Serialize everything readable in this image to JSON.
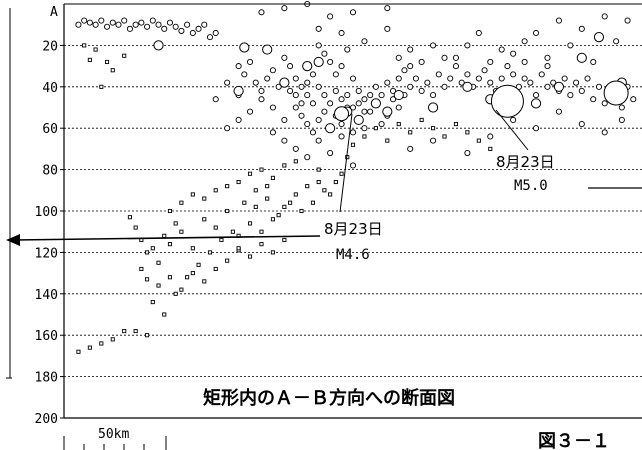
{
  "chart_data": {
    "type": "scatter",
    "title": "矩形内のＡ－Ｂ方向への断面図",
    "figure_label": "図３－１",
    "corner_label": "A",
    "scale_label": "50km",
    "ylim": [
      0,
      200
    ],
    "yticks": [
      20,
      40,
      60,
      80,
      100,
      120,
      140,
      160,
      180,
      200
    ],
    "y_reversed": true,
    "grid": "horizontal-dotted",
    "x_extent": [
      0,
      100
    ],
    "annotations": [
      {
        "date": "8月23日",
        "mag": "M4.6",
        "x": 48,
        "y": 55
      },
      {
        "date": "8月23日",
        "mag": "M5.0",
        "x": 78,
        "y": 47
      }
    ],
    "series": [
      {
        "marker": "square",
        "points": [
          [
            3,
            20
          ],
          [
            5,
            22
          ],
          [
            4,
            27
          ],
          [
            7,
            28
          ],
          [
            10,
            25
          ],
          [
            8,
            32
          ],
          [
            6,
            40
          ],
          [
            11,
            103
          ],
          [
            12,
            108
          ],
          [
            13,
            114
          ],
          [
            14,
            120
          ],
          [
            15,
            118
          ],
          [
            16,
            125
          ],
          [
            17,
            112
          ],
          [
            18,
            116
          ],
          [
            19,
            106
          ],
          [
            20,
            110
          ],
          [
            13,
            128
          ],
          [
            14,
            133
          ],
          [
            16,
            136
          ],
          [
            18,
            132
          ],
          [
            20,
            138
          ],
          [
            22,
            130
          ],
          [
            24,
            134
          ],
          [
            26,
            128
          ],
          [
            28,
            124
          ],
          [
            30,
            119
          ],
          [
            15,
            144
          ],
          [
            17,
            150
          ],
          [
            14,
            160
          ],
          [
            12,
            158
          ],
          [
            10,
            158
          ],
          [
            8,
            162
          ],
          [
            6,
            164
          ],
          [
            4,
            166
          ],
          [
            2,
            168
          ],
          [
            18,
            100
          ],
          [
            20,
            96
          ],
          [
            22,
            92
          ],
          [
            24,
            94
          ],
          [
            26,
            90
          ],
          [
            28,
            88
          ],
          [
            30,
            86
          ],
          [
            32,
            82
          ],
          [
            34,
            80
          ],
          [
            36,
            84
          ],
          [
            38,
            78
          ],
          [
            40,
            76
          ],
          [
            42,
            74
          ],
          [
            44,
            80
          ],
          [
            24,
            104
          ],
          [
            26,
            108
          ],
          [
            28,
            100
          ],
          [
            30,
            112
          ],
          [
            32,
            106
          ],
          [
            34,
            110
          ],
          [
            36,
            104
          ],
          [
            38,
            98
          ],
          [
            40,
            92
          ],
          [
            42,
            88
          ],
          [
            44,
            86
          ],
          [
            46,
            92
          ],
          [
            48,
            82
          ],
          [
            30,
            118
          ],
          [
            32,
            122
          ],
          [
            34,
            116
          ],
          [
            36,
            120
          ],
          [
            38,
            114
          ],
          [
            22,
            118
          ],
          [
            25,
            120
          ],
          [
            27,
            114
          ],
          [
            29,
            110
          ],
          [
            31,
            96
          ],
          [
            33,
            98
          ],
          [
            35,
            94
          ],
          [
            37,
            102
          ],
          [
            39,
            96
          ],
          [
            41,
            100
          ],
          [
            43,
            96
          ],
          [
            45,
            90
          ],
          [
            47,
            86
          ],
          [
            49,
            74
          ],
          [
            50,
            68
          ],
          [
            52,
            64
          ],
          [
            54,
            60
          ],
          [
            56,
            66
          ],
          [
            58,
            58
          ],
          [
            60,
            62
          ],
          [
            62,
            56
          ],
          [
            64,
            60
          ],
          [
            66,
            64
          ],
          [
            68,
            58
          ],
          [
            70,
            62
          ],
          [
            72,
            66
          ],
          [
            74,
            70
          ],
          [
            23,
            126
          ],
          [
            21,
            132
          ],
          [
            19,
            140
          ],
          [
            33,
            90
          ],
          [
            35,
            88
          ]
        ]
      },
      {
        "marker": "circle-small",
        "points": [
          [
            2,
            10
          ],
          [
            3,
            8
          ],
          [
            4,
            9
          ],
          [
            5,
            10
          ],
          [
            6,
            8
          ],
          [
            7,
            11
          ],
          [
            8,
            9
          ],
          [
            9,
            10
          ],
          [
            10,
            8
          ],
          [
            11,
            12
          ],
          [
            12,
            10
          ],
          [
            13,
            9
          ],
          [
            14,
            11
          ],
          [
            15,
            8
          ],
          [
            16,
            10
          ],
          [
            17,
            12
          ],
          [
            18,
            9
          ],
          [
            19,
            11
          ],
          [
            20,
            13
          ],
          [
            21,
            10
          ],
          [
            22,
            14
          ],
          [
            23,
            12
          ],
          [
            24,
            10
          ],
          [
            25,
            16
          ],
          [
            26,
            14
          ],
          [
            30,
            30
          ],
          [
            31,
            34
          ],
          [
            32,
            28
          ],
          [
            33,
            38
          ],
          [
            34,
            42
          ],
          [
            35,
            36
          ],
          [
            36,
            32
          ],
          [
            37,
            40
          ],
          [
            38,
            26
          ],
          [
            39,
            30
          ],
          [
            40,
            44
          ],
          [
            41,
            48
          ],
          [
            42,
            38
          ],
          [
            43,
            34
          ],
          [
            44,
            20
          ],
          [
            45,
            24
          ],
          [
            46,
            28
          ],
          [
            47,
            34
          ],
          [
            48,
            30
          ],
          [
            49,
            22
          ],
          [
            50,
            36
          ],
          [
            51,
            42
          ],
          [
            52,
            46
          ],
          [
            40,
            50
          ],
          [
            41,
            54
          ],
          [
            42,
            58
          ],
          [
            43,
            62
          ],
          [
            44,
            56
          ],
          [
            45,
            52
          ],
          [
            46,
            60
          ],
          [
            47,
            54
          ],
          [
            48,
            58
          ],
          [
            49,
            50
          ],
          [
            50,
            62
          ],
          [
            51,
            56
          ],
          [
            52,
            60
          ],
          [
            53,
            52
          ],
          [
            54,
            48
          ],
          [
            55,
            58
          ],
          [
            56,
            54
          ],
          [
            57,
            46
          ],
          [
            58,
            50
          ],
          [
            59,
            44
          ],
          [
            60,
            40
          ],
          [
            61,
            36
          ],
          [
            62,
            42
          ],
          [
            63,
            38
          ],
          [
            64,
            44
          ],
          [
            65,
            34
          ],
          [
            66,
            40
          ],
          [
            67,
            36
          ],
          [
            68,
            30
          ],
          [
            69,
            38
          ],
          [
            70,
            34
          ],
          [
            71,
            40
          ],
          [
            72,
            36
          ],
          [
            73,
            32
          ],
          [
            74,
            38
          ],
          [
            75,
            42
          ],
          [
            76,
            36
          ],
          [
            77,
            30
          ],
          [
            78,
            34
          ],
          [
            79,
            40
          ],
          [
            80,
            36
          ],
          [
            81,
            38
          ],
          [
            82,
            44
          ],
          [
            83,
            34
          ],
          [
            84,
            40
          ],
          [
            85,
            38
          ],
          [
            86,
            42
          ],
          [
            87,
            36
          ],
          [
            88,
            44
          ],
          [
            89,
            38
          ],
          [
            90,
            42
          ],
          [
            91,
            36
          ],
          [
            92,
            46
          ],
          [
            93,
            40
          ],
          [
            94,
            48
          ],
          [
            95,
            42
          ],
          [
            96,
            44
          ],
          [
            97,
            50
          ],
          [
            98,
            40
          ],
          [
            99,
            46
          ],
          [
            60,
            22
          ],
          [
            64,
            20
          ],
          [
            68,
            26
          ],
          [
            72,
            14
          ],
          [
            76,
            22
          ],
          [
            80,
            18
          ],
          [
            84,
            26
          ],
          [
            88,
            20
          ],
          [
            92,
            28
          ],
          [
            96,
            18
          ],
          [
            98,
            8
          ],
          [
            94,
            6
          ],
          [
            90,
            12
          ],
          [
            86,
            8
          ],
          [
            82,
            14
          ],
          [
            60,
            70
          ],
          [
            64,
            66
          ],
          [
            70,
            72
          ],
          [
            74,
            64
          ],
          [
            78,
            56
          ],
          [
            82,
            60
          ],
          [
            86,
            52
          ],
          [
            90,
            58
          ],
          [
            94,
            62
          ],
          [
            97,
            56
          ],
          [
            36,
            62
          ],
          [
            38,
            66
          ],
          [
            40,
            70
          ],
          [
            42,
            74
          ],
          [
            44,
            66
          ],
          [
            46,
            72
          ],
          [
            48,
            64
          ],
          [
            50,
            78
          ],
          [
            38,
            56
          ],
          [
            36,
            50
          ],
          [
            34,
            46
          ],
          [
            32,
            52
          ],
          [
            30,
            56
          ],
          [
            28,
            60
          ],
          [
            26,
            46
          ],
          [
            28,
            38
          ],
          [
            30,
            44
          ],
          [
            34,
            4
          ],
          [
            38,
            2
          ],
          [
            42,
            0
          ],
          [
            46,
            6
          ],
          [
            50,
            4
          ],
          [
            56,
            2
          ],
          [
            44,
            12
          ],
          [
            48,
            14
          ],
          [
            52,
            18
          ],
          [
            56,
            12
          ],
          [
            58,
            26
          ],
          [
            60,
            30
          ],
          [
            62,
            28
          ],
          [
            66,
            26
          ],
          [
            70,
            20
          ],
          [
            74,
            28
          ],
          [
            78,
            24
          ],
          [
            80,
            28
          ],
          [
            84,
            30
          ],
          [
            44,
            40
          ],
          [
            45,
            44
          ],
          [
            46,
            48
          ],
          [
            47,
            42
          ],
          [
            48,
            46
          ],
          [
            49,
            44
          ],
          [
            50,
            50
          ],
          [
            51,
            48
          ],
          [
            52,
            52
          ],
          [
            53,
            44
          ],
          [
            54,
            40
          ],
          [
            55,
            44
          ],
          [
            56,
            38
          ],
          [
            57,
            42
          ],
          [
            58,
            36
          ],
          [
            59,
            32
          ],
          [
            42,
            44
          ],
          [
            43,
            48
          ],
          [
            41,
            40
          ],
          [
            40,
            36
          ],
          [
            39,
            42
          ]
        ]
      },
      {
        "marker": "circle-large",
        "points": [
          [
            16,
            20
          ],
          [
            31,
            21
          ],
          [
            35,
            22
          ],
          [
            44,
            28
          ],
          [
            54,
            48
          ],
          [
            56,
            52
          ],
          [
            58,
            44
          ],
          [
            46,
            60
          ],
          [
            30,
            42
          ],
          [
            70,
            40
          ],
          [
            86,
            40
          ],
          [
            97,
            38
          ],
          [
            49,
            52
          ],
          [
            51,
            56
          ],
          [
            38,
            38
          ],
          [
            42,
            30
          ],
          [
            64,
            50
          ],
          [
            74,
            46
          ],
          [
            90,
            26
          ],
          [
            93,
            16
          ],
          [
            82,
            48
          ]
        ]
      },
      {
        "marker": "circle-huge",
        "points": [
          [
            77,
            47
          ]
        ]
      },
      {
        "marker": "circle-big",
        "points": [
          [
            96,
            43
          ]
        ]
      },
      {
        "marker": "circle-mid",
        "points": [
          [
            48,
            53
          ]
        ]
      }
    ]
  }
}
